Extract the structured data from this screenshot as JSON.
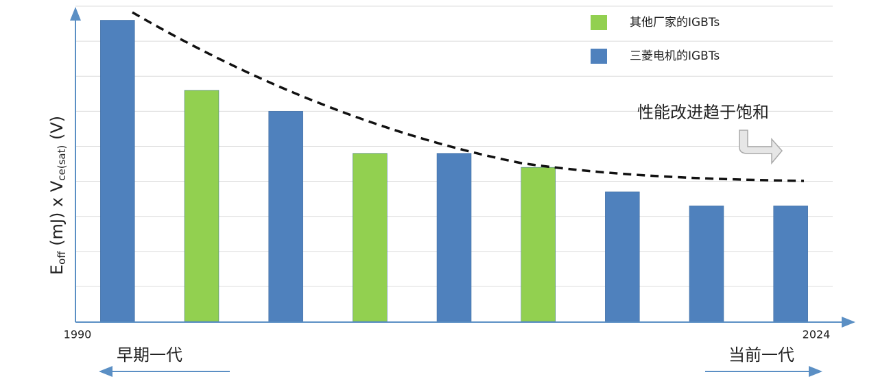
{
  "chart_data": {
    "type": "bar",
    "categories": [
      null,
      null,
      null,
      null,
      null,
      null,
      null,
      null,
      null
    ],
    "series": [
      {
        "name": "其他厂家的IGBTs",
        "color": "#92d050",
        "values": [
          null,
          6.6,
          null,
          4.8,
          null,
          4.4,
          null,
          null,
          null
        ]
      },
      {
        "name": "三菱电机的IGBTs",
        "color": "#4f81bd",
        "values": [
          8.6,
          null,
          6.0,
          null,
          4.8,
          null,
          3.7,
          3.3,
          3.3
        ]
      }
    ],
    "ylim": [
      0,
      9
    ],
    "gridlines": [
      1,
      2,
      3,
      4,
      5,
      6,
      7,
      8,
      9
    ],
    "ylabel_parts": [
      {
        "text": "E",
        "sub": false
      },
      {
        "text": "off",
        "sub": true
      },
      {
        "text": " (mJ) x V",
        "sub": false
      },
      {
        "text": "ce(sat)",
        "sub": true
      },
      {
        "text": " (V)",
        "sub": false
      }
    ],
    "x_axis_labels": [
      "1990",
      "2024"
    ],
    "annotations": {
      "trend": "性能改进趋于饱和",
      "early": "早期一代",
      "current": "当前一代"
    }
  }
}
